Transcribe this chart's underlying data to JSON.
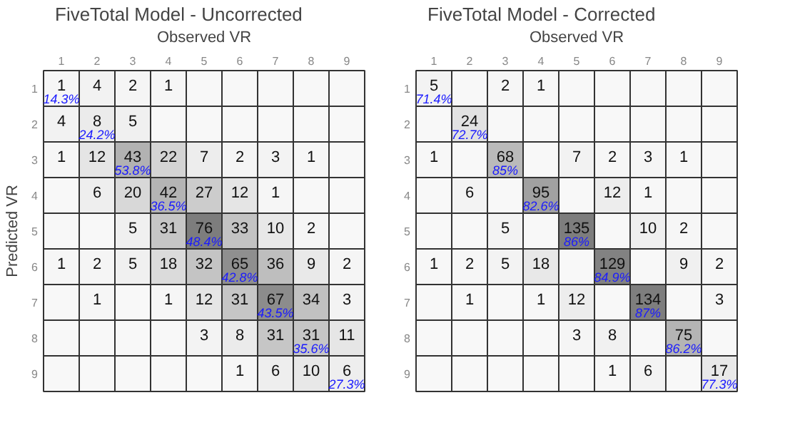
{
  "chart_data": [
    {
      "type": "heatmap",
      "title": "FiveTotal Model - Uncorrected",
      "xlabel": "Observed VR",
      "ylabel": "Predicted VR",
      "data_labels": true,
      "categories": [
        "1",
        "2",
        "3",
        "4",
        "5",
        "6",
        "7",
        "8",
        "9"
      ],
      "y_categories": [
        "1",
        "2",
        "3",
        "4",
        "5",
        "6",
        "7",
        "8",
        "9"
      ],
      "cells": [
        [
          1,
          4,
          2,
          1,
          null,
          null,
          null,
          null,
          null
        ],
        [
          4,
          8,
          5,
          null,
          null,
          null,
          null,
          null,
          null
        ],
        [
          1,
          12,
          43,
          22,
          7,
          2,
          3,
          1,
          null
        ],
        [
          null,
          6,
          20,
          42,
          27,
          12,
          1,
          null,
          null
        ],
        [
          null,
          null,
          5,
          31,
          76,
          33,
          10,
          2,
          null
        ],
        [
          1,
          2,
          5,
          18,
          32,
          65,
          36,
          9,
          2
        ],
        [
          null,
          1,
          null,
          1,
          12,
          31,
          67,
          34,
          3
        ],
        [
          null,
          null,
          null,
          null,
          3,
          8,
          31,
          31,
          11
        ],
        [
          null,
          null,
          null,
          null,
          null,
          1,
          6,
          10,
          6
        ]
      ],
      "annotations": [
        "14.3%",
        "24.2%",
        "53.8%",
        "36.5%",
        "48.4%",
        "42.8%",
        "43.5%",
        "35.6%",
        "27.3%"
      ]
    },
    {
      "type": "heatmap",
      "title": "FiveTotal Model - Corrected",
      "xlabel": "Observed VR",
      "data_labels": true,
      "categories": [
        "1",
        "2",
        "3",
        "4",
        "5",
        "6",
        "7",
        "8",
        "9"
      ],
      "y_categories": [
        "1",
        "2",
        "3",
        "4",
        "5",
        "6",
        "7",
        "8",
        "9"
      ],
      "cells": [
        [
          5,
          null,
          2,
          1,
          null,
          null,
          null,
          null,
          null
        ],
        [
          null,
          24,
          null,
          null,
          null,
          null,
          null,
          null,
          null
        ],
        [
          1,
          null,
          68,
          null,
          7,
          2,
          3,
          1,
          null
        ],
        [
          null,
          6,
          null,
          95,
          null,
          12,
          1,
          null,
          null
        ],
        [
          null,
          null,
          5,
          null,
          135,
          null,
          10,
          2,
          null
        ],
        [
          1,
          2,
          5,
          18,
          null,
          129,
          null,
          9,
          2
        ],
        [
          null,
          1,
          null,
          1,
          12,
          null,
          134,
          null,
          3
        ],
        [
          null,
          null,
          null,
          null,
          3,
          8,
          null,
          75,
          null
        ],
        [
          null,
          null,
          null,
          null,
          null,
          1,
          6,
          null,
          17
        ]
      ],
      "annotations": [
        "71.4%",
        "72.7%",
        "85%",
        "82.6%",
        "86%",
        "84.9%",
        "87%",
        "86.2%",
        "77.3%"
      ]
    }
  ]
}
